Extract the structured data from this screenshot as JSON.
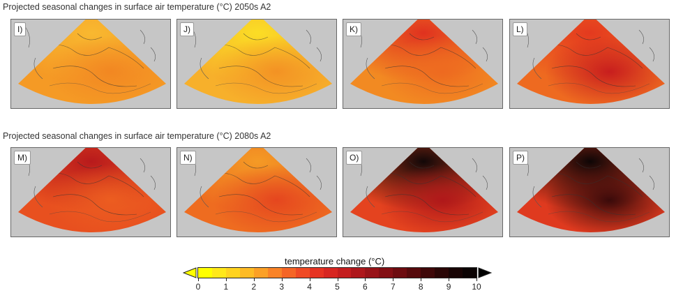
{
  "rows": [
    {
      "title": "Projected seasonal changes in surface air temperature (°C) 2050s A2",
      "panels": [
        {
          "label": "I)",
          "base": "#f59a25",
          "north": "#f8b830",
          "hot": "#f28722"
        },
        {
          "label": "J)",
          "base": "#f7b02b",
          "north": "#fbdd25",
          "hot": "#f39224"
        },
        {
          "label": "K)",
          "base": "#f28a22",
          "north": "#e0321f",
          "hot": "#ee6a20"
        },
        {
          "label": "L)",
          "base": "#ee6a20",
          "north": "#e43a1f",
          "hot": "#c81e1e"
        }
      ]
    },
    {
      "title": "Projected seasonal changes in surface air temperature (°C) 2080s A2",
      "panels": [
        {
          "label": "M)",
          "base": "#e8501f",
          "north": "#b81a1c",
          "hot": "#ec5d20"
        },
        {
          "label": "N)",
          "base": "#ee6c20",
          "north": "#f49a25",
          "hot": "#e5461f"
        },
        {
          "label": "O)",
          "base": "#e4431f",
          "north": "#120808",
          "hot": "#b0181a"
        },
        {
          "label": "P)",
          "base": "#df3a1f",
          "north": "#0e0606",
          "hot": "#3a0a0a"
        }
      ]
    }
  ],
  "legend": {
    "title": "temperature change (°C)",
    "ticks": [
      "0",
      "1",
      "2",
      "3",
      "4",
      "5",
      "6",
      "7",
      "8",
      "9",
      "10"
    ],
    "colors": [
      "#ffff00",
      "#ffe819",
      "#ffd31f",
      "#fdbb25",
      "#fba026",
      "#f98327",
      "#f56525",
      "#ef4a24",
      "#e63322",
      "#d72621",
      "#c41d1e",
      "#ae171b",
      "#981318",
      "#830f14",
      "#6d0c10",
      "#560a0c",
      "#3f0809",
      "#2a0606",
      "#180404",
      "#0b0303"
    ],
    "under_color": "#ffff00",
    "over_color": "#000000"
  }
}
